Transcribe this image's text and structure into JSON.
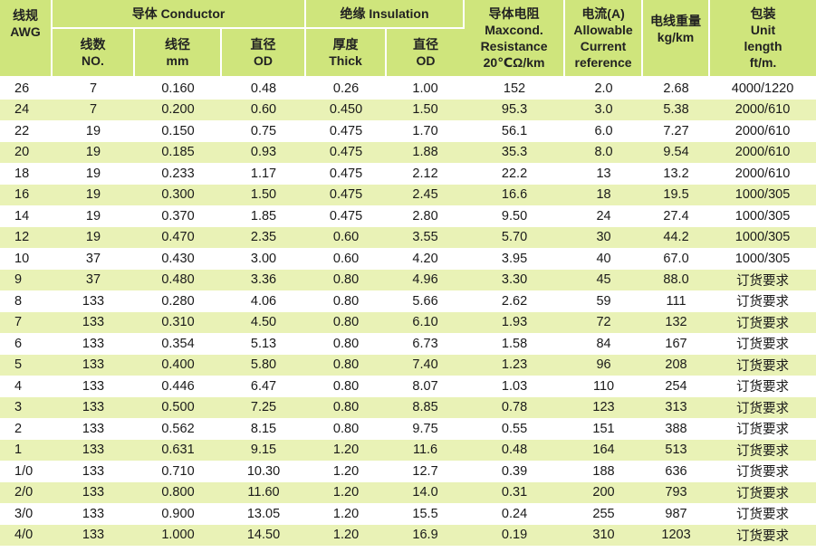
{
  "header": {
    "awg": "线规\nAWG",
    "conductor": "导体 Conductor",
    "insulation": "绝缘 Insulation",
    "resistance": "导体电阻\nMaxcond.\nResistance\n20℃Ω/km",
    "current": "电流(A)\nAllowable\nCurrent\nreference",
    "weight": "电线重量\nkg/km",
    "package": "包装\nUnit\nlength\nft/m.",
    "strands": "线数\nNO.",
    "wire_dia": "线径\nmm",
    "cond_od": "直径\nOD",
    "thick": "厚度\nThick",
    "ins_od": "直径\nOD"
  },
  "rows": [
    [
      "26",
      "7",
      "0.160",
      "0.48",
      "0.26",
      "1.00",
      "152",
      "2.0",
      "2.68",
      "4000/1220"
    ],
    [
      "24",
      "7",
      "0.200",
      "0.60",
      "0.450",
      "1.50",
      "95.3",
      "3.0",
      "5.38",
      "2000/610"
    ],
    [
      "22",
      "19",
      "0.150",
      "0.75",
      "0.475",
      "1.70",
      "56.1",
      "6.0",
      "7.27",
      "2000/610"
    ],
    [
      "20",
      "19",
      "0.185",
      "0.93",
      "0.475",
      "1.88",
      "35.3",
      "8.0",
      "9.54",
      "2000/610"
    ],
    [
      "18",
      "19",
      "0.233",
      "1.17",
      "0.475",
      "2.12",
      "22.2",
      "13",
      "13.2",
      "2000/610"
    ],
    [
      "16",
      "19",
      "0.300",
      "1.50",
      "0.475",
      "2.45",
      "16.6",
      "18",
      "19.5",
      "1000/305"
    ],
    [
      "14",
      "19",
      "0.370",
      "1.85",
      "0.475",
      "2.80",
      "9.50",
      "24",
      "27.4",
      "1000/305"
    ],
    [
      "12",
      "19",
      "0.470",
      "2.35",
      "0.60",
      "3.55",
      "5.70",
      "30",
      "44.2",
      "1000/305"
    ],
    [
      "10",
      "37",
      "0.430",
      "3.00",
      "0.60",
      "4.20",
      "3.95",
      "40",
      "67.0",
      "1000/305"
    ],
    [
      "9",
      "37",
      "0.480",
      "3.36",
      "0.80",
      "4.96",
      "3.30",
      "45",
      "88.0",
      "订货要求"
    ],
    [
      "8",
      "133",
      "0.280",
      "4.06",
      "0.80",
      "5.66",
      "2.62",
      "59",
      "111",
      "订货要求"
    ],
    [
      "7",
      "133",
      "0.310",
      "4.50",
      "0.80",
      "6.10",
      "1.93",
      "72",
      "132",
      "订货要求"
    ],
    [
      "6",
      "133",
      "0.354",
      "5.13",
      "0.80",
      "6.73",
      "1.58",
      "84",
      "167",
      "订货要求"
    ],
    [
      "5",
      "133",
      "0.400",
      "5.80",
      "0.80",
      "7.40",
      "1.23",
      "96",
      "208",
      "订货要求"
    ],
    [
      "4",
      "133",
      "0.446",
      "6.47",
      "0.80",
      "8.07",
      "1.03",
      "110",
      "254",
      "订货要求"
    ],
    [
      "3",
      "133",
      "0.500",
      "7.25",
      "0.80",
      "8.85",
      "0.78",
      "123",
      "313",
      "订货要求"
    ],
    [
      "2",
      "133",
      "0.562",
      "8.15",
      "0.80",
      "9.75",
      "0.55",
      "151",
      "388",
      "订货要求"
    ],
    [
      "1",
      "133",
      "0.631",
      "9.15",
      "1.20",
      "11.6",
      "0.48",
      "164",
      "513",
      "订货要求"
    ],
    [
      "1/0",
      "133",
      "0.710",
      "10.30",
      "1.20",
      "12.7",
      "0.39",
      "188",
      "636",
      "订货要求"
    ],
    [
      "2/0",
      "133",
      "0.800",
      "11.60",
      "1.20",
      "14.0",
      "0.31",
      "200",
      "793",
      "订货要求"
    ],
    [
      "3/0",
      "133",
      "0.900",
      "13.05",
      "1.20",
      "15.5",
      "0.24",
      "255",
      "987",
      "订货要求"
    ],
    [
      "4/0",
      "133",
      "1.000",
      "14.50",
      "1.20",
      "16.9",
      "0.19",
      "310",
      "1203",
      "订货要求"
    ]
  ]
}
